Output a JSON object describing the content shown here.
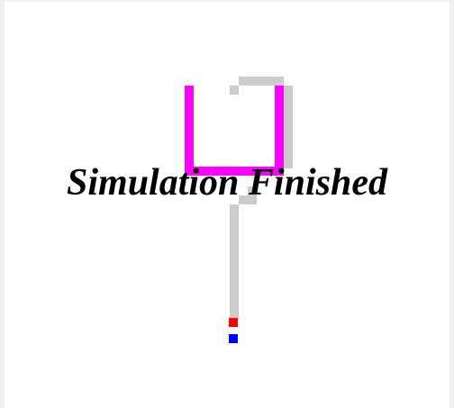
{
  "status": {
    "message": "Simulation Finished"
  },
  "colors": {
    "background": "#ffffff",
    "frame": "#efefef",
    "trail": "#cccccc",
    "active_path": "#ff00ff",
    "red_marker": "#ff0000",
    "blue_marker": "#0000ff"
  },
  "legend_icons": {
    "trail": "trail-cell",
    "active_path": "magenta-path-cell",
    "red_marker": "red-square",
    "blue_marker": "blue-square"
  }
}
